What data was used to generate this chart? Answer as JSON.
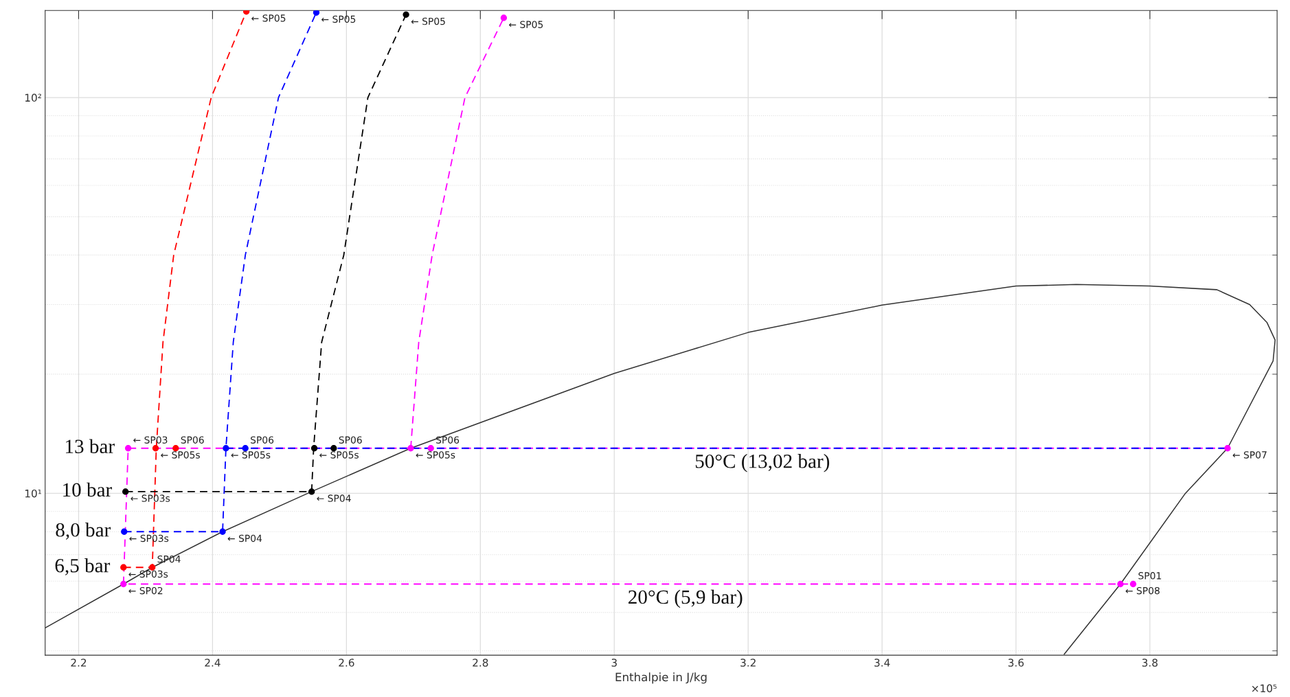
{
  "chart_data": {
    "type": "line",
    "xlabel": "Enthalpie in J/kg",
    "xlim": [
      2.15,
      3.99
    ],
    "ylim": [
      3.9,
      166
    ],
    "log": "y",
    "grid": true,
    "xticks": [
      2.2,
      2.4,
      2.6,
      2.8,
      3,
      3.2,
      3.4,
      3.6,
      3.8
    ],
    "yticks": [
      {
        "value": 10,
        "label": "10¹"
      },
      {
        "value": 100,
        "label": "10²"
      }
    ],
    "annotations": [
      "×10⁵",
      {
        "text": "13 bar",
        "x": 2.274,
        "y": 13
      },
      {
        "text": "10 bar",
        "x": 2.27,
        "y": 10.1
      },
      {
        "text": "8,0 bar",
        "x": 2.268,
        "y": 8.0
      },
      {
        "text": "6,5 bar",
        "x": 2.267,
        "y": 6.5
      },
      {
        "text": "50°C (13,02 bar)",
        "x": 3.12,
        "y": 13
      },
      {
        "text": "20°C (5,9 bar)",
        "x": 3.02,
        "y": 5.9
      }
    ],
    "series": [
      {
        "color": "#333333",
        "line_style": "solid",
        "marker": "none",
        "x": [
          2.15,
          2.267,
          2.31,
          2.415,
          2.548,
          2.696,
          3.0,
          3.2,
          3.4,
          3.6,
          3.69,
          3.8,
          3.9,
          3.949,
          3.975,
          3.987,
          3.984,
          3.916,
          3.853,
          3.756,
          3.672
        ],
        "values": [
          4.57,
          5.9,
          6.5,
          8.0,
          10.1,
          13.0,
          20.1,
          25.5,
          29.9,
          33.4,
          33.7,
          33.4,
          32.7,
          30.0,
          27.0,
          24.4,
          21.6,
          13.0,
          10.0,
          5.9,
          3.92
        ]
      },
      {
        "color": "#ff0000",
        "line_style": "dashed",
        "marker": "none",
        "x": [
          2.267,
          2.31,
          2.316,
          2.326,
          2.342,
          2.398,
          2.4505
        ],
        "values": [
          6.5,
          6.5,
          13,
          24.1,
          40,
          100,
          165
        ]
      },
      {
        "color": "#0000ff",
        "line_style": "dashed",
        "marker": "none",
        "x": [
          2.268,
          2.415,
          2.42,
          2.431,
          2.449,
          2.4985,
          2.555
        ],
        "values": [
          8.0,
          8.0,
          13,
          24.1,
          40,
          100,
          164
        ]
      },
      {
        "color": "#000000",
        "line_style": "dashed",
        "marker": "none",
        "x": [
          2.27,
          2.548,
          2.551,
          2.563,
          2.596,
          2.632,
          2.689
        ],
        "values": [
          10.1,
          10.1,
          13,
          24.1,
          40,
          100,
          162
        ]
      },
      {
        "color": "#ff00ff",
        "line_style": "dashed",
        "marker": "none",
        "x": [
          2.696,
          2.708,
          2.728,
          2.777,
          2.835
        ],
        "values": [
          13,
          24.1,
          40,
          100,
          159
        ]
      },
      {
        "color": "#ff00ff",
        "line_style": "dashed",
        "marker": "none",
        "x": [
          3.916,
          2.274,
          2.267,
          3.775
        ],
        "values": [
          13,
          13,
          5.9,
          5.9
        ]
      },
      {
        "color": "#0000ff",
        "line_style": "dashed",
        "marker": "none",
        "x": [
          2.42,
          3.916
        ],
        "values": [
          13,
          13
        ]
      },
      {
        "type": "scatter",
        "color": "#ff0000",
        "marker": "circle",
        "x": [
          2.267,
          2.31,
          2.315,
          2.345,
          2.4505
        ],
        "values": [
          6.5,
          6.5,
          13,
          13,
          165
        ],
        "value_labels": [
          "← SP03s",
          "SP04",
          "← SP05s",
          "SP06",
          "← SP05"
        ]
      },
      {
        "type": "scatter",
        "color": "#0000ff",
        "marker": "circle",
        "x": [
          2.268,
          2.415,
          2.42,
          2.449,
          2.555
        ],
        "values": [
          8.0,
          8.0,
          13,
          13,
          164
        ],
        "value_labels": [
          "← SP03s",
          "← SP04",
          "← SP05s",
          "SP06",
          "← SP05"
        ]
      },
      {
        "type": "scatter",
        "color": "#000000",
        "marker": "circle",
        "x": [
          2.27,
          2.548,
          2.552,
          2.581,
          2.689
        ],
        "values": [
          10.1,
          10.1,
          13,
          13,
          162
        ],
        "value_labels": [
          "← SP03s",
          "← SP04",
          "← SP05s",
          "SP06",
          "← SP05"
        ]
      },
      {
        "type": "scatter",
        "color": "#ff00ff",
        "marker": "circle",
        "x": [
          2.267,
          2.274,
          2.696,
          2.726,
          2.835,
          3.916,
          3.756,
          3.775
        ],
        "values": [
          5.9,
          13,
          13,
          13,
          159,
          13,
          5.9,
          5.9
        ],
        "value_labels": [
          "← SP02",
          "← SP03",
          "← SP05s",
          "SP06",
          "← SP05",
          "← SP07",
          "← SP08",
          "SP01"
        ]
      }
    ]
  }
}
